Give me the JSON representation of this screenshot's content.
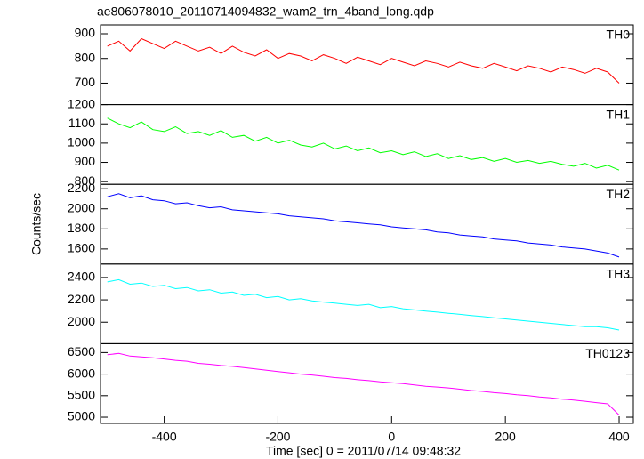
{
  "chart_data": [
    {
      "type": "line",
      "title": "ae806078010_20110714094832_wam2_trn_4band_long.qdp",
      "x": [
        -500,
        -480,
        -460,
        -440,
        -420,
        -400,
        -380,
        -360,
        -340,
        -320,
        -300,
        -280,
        -260,
        -240,
        -220,
        -200,
        -180,
        -160,
        -140,
        -120,
        -100,
        -80,
        -60,
        -40,
        -20,
        0,
        20,
        40,
        60,
        80,
        100,
        120,
        140,
        160,
        180,
        200,
        220,
        240,
        260,
        280,
        300,
        320,
        340,
        360,
        380,
        400
      ],
      "series": [
        {
          "name": "TH0",
          "color": "#ff0000",
          "values": [
            850,
            870,
            830,
            880,
            860,
            840,
            870,
            850,
            830,
            845,
            820,
            850,
            825,
            810,
            835,
            800,
            820,
            810,
            790,
            815,
            800,
            780,
            805,
            790,
            775,
            800,
            785,
            770,
            790,
            780,
            765,
            785,
            770,
            760,
            780,
            765,
            750,
            770,
            760,
            745,
            765,
            755,
            740,
            760,
            745,
            700
          ]
        }
      ],
      "xlim": [
        -512,
        425
      ],
      "ylim": [
        613,
        936
      ],
      "yticks": [
        700,
        800,
        900
      ]
    },
    {
      "type": "line",
      "x": [
        -500,
        -480,
        -460,
        -440,
        -420,
        -400,
        -380,
        -360,
        -340,
        -320,
        -300,
        -280,
        -260,
        -240,
        -220,
        -200,
        -180,
        -160,
        -140,
        -120,
        -100,
        -80,
        -60,
        -40,
        -20,
        0,
        20,
        40,
        60,
        80,
        100,
        120,
        140,
        160,
        180,
        200,
        220,
        240,
        260,
        280,
        300,
        320,
        340,
        360,
        380,
        400
      ],
      "series": [
        {
          "name": "TH1",
          "color": "#00ff00",
          "values": [
            1130,
            1100,
            1080,
            1110,
            1070,
            1060,
            1085,
            1050,
            1060,
            1040,
            1065,
            1030,
            1040,
            1010,
            1030,
            1000,
            1015,
            990,
            980,
            1000,
            970,
            985,
            960,
            975,
            950,
            960,
            940,
            955,
            930,
            945,
            920,
            935,
            915,
            925,
            905,
            920,
            900,
            910,
            895,
            905,
            890,
            880,
            895,
            870,
            885,
            860
          ]
        }
      ],
      "xlim": [
        -512,
        425
      ],
      "ylim": [
        786,
        1200
      ],
      "yticks": [
        800,
        900,
        1000,
        1100,
        1200
      ]
    },
    {
      "type": "line",
      "y_label": "Counts/sec",
      "x": [
        -500,
        -480,
        -460,
        -440,
        -420,
        -400,
        -380,
        -360,
        -340,
        -320,
        -300,
        -280,
        -260,
        -240,
        -220,
        -200,
        -180,
        -160,
        -140,
        -120,
        -100,
        -80,
        -60,
        -40,
        -20,
        0,
        20,
        40,
        60,
        80,
        100,
        120,
        140,
        160,
        180,
        200,
        220,
        240,
        260,
        280,
        300,
        320,
        340,
        360,
        380,
        400
      ],
      "series": [
        {
          "name": "TH2",
          "color": "#0000ff",
          "values": [
            2120,
            2150,
            2110,
            2130,
            2090,
            2080,
            2050,
            2060,
            2030,
            2010,
            2020,
            1990,
            1980,
            1970,
            1960,
            1950,
            1930,
            1920,
            1910,
            1900,
            1880,
            1870,
            1860,
            1850,
            1840,
            1820,
            1810,
            1800,
            1790,
            1770,
            1760,
            1740,
            1730,
            1720,
            1700,
            1690,
            1680,
            1660,
            1650,
            1640,
            1620,
            1610,
            1600,
            1580,
            1560,
            1520
          ]
        }
      ],
      "xlim": [
        -512,
        425
      ],
      "ylim": [
        1450,
        2244
      ],
      "yticks": [
        1600,
        1800,
        2000,
        2200
      ]
    },
    {
      "type": "line",
      "x": [
        -500,
        -480,
        -460,
        -440,
        -420,
        -400,
        -380,
        -360,
        -340,
        -320,
        -300,
        -280,
        -260,
        -240,
        -220,
        -200,
        -180,
        -160,
        -140,
        -120,
        -100,
        -80,
        -60,
        -40,
        -20,
        0,
        20,
        40,
        60,
        80,
        100,
        120,
        140,
        160,
        180,
        200,
        220,
        240,
        260,
        280,
        300,
        320,
        340,
        360,
        380,
        400
      ],
      "series": [
        {
          "name": "TH3",
          "color": "#00ffff",
          "values": [
            2360,
            2380,
            2340,
            2350,
            2320,
            2330,
            2300,
            2310,
            2280,
            2290,
            2260,
            2270,
            2240,
            2250,
            2220,
            2230,
            2200,
            2210,
            2190,
            2180,
            2170,
            2160,
            2150,
            2160,
            2130,
            2140,
            2120,
            2110,
            2100,
            2090,
            2080,
            2070,
            2060,
            2050,
            2040,
            2030,
            2020,
            2010,
            2000,
            1990,
            1980,
            1970,
            1960,
            1960,
            1950,
            1930
          ]
        }
      ],
      "xlim": [
        -512,
        425
      ],
      "ylim": [
        1808,
        2520
      ],
      "yticks": [
        2000,
        2200,
        2400
      ]
    },
    {
      "type": "line",
      "x_label": "Time [sec] 0 = 2011/07/14 09:48:32",
      "x": [
        -500,
        -480,
        -460,
        -440,
        -420,
        -400,
        -380,
        -360,
        -340,
        -320,
        -300,
        -280,
        -260,
        -240,
        -220,
        -200,
        -180,
        -160,
        -140,
        -120,
        -100,
        -80,
        -60,
        -40,
        -20,
        0,
        20,
        40,
        60,
        80,
        100,
        120,
        140,
        160,
        180,
        200,
        220,
        240,
        260,
        280,
        300,
        320,
        340,
        360,
        380,
        400
      ],
      "series": [
        {
          "name": "TH0123",
          "color": "#ff00ff",
          "values": [
            6450,
            6480,
            6420,
            6400,
            6380,
            6350,
            6320,
            6300,
            6250,
            6230,
            6200,
            6180,
            6150,
            6120,
            6090,
            6060,
            6030,
            6000,
            5980,
            5950,
            5920,
            5900,
            5870,
            5850,
            5820,
            5800,
            5780,
            5750,
            5720,
            5700,
            5680,
            5650,
            5620,
            5600,
            5570,
            5550,
            5520,
            5500,
            5470,
            5450,
            5420,
            5400,
            5370,
            5340,
            5310,
            5050
          ]
        }
      ],
      "xlim": [
        -512,
        425
      ],
      "ylim": [
        4856,
        6706
      ],
      "yticks": [
        5000,
        5500,
        6000,
        6500
      ],
      "xticks": [
        -400,
        -200,
        0,
        200,
        400
      ]
    }
  ]
}
